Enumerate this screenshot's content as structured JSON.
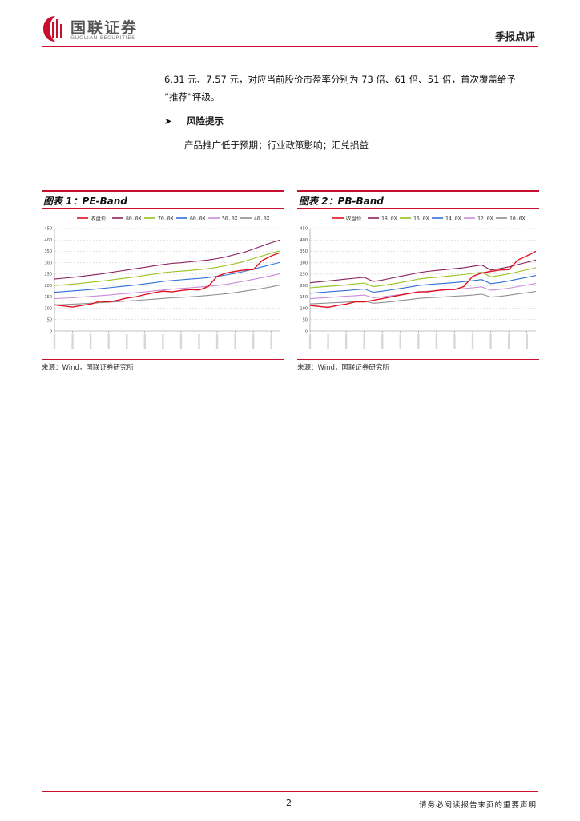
{
  "header": {
    "logo_cn": "国联证券",
    "logo_en": "GUOLIAN SECURITIES",
    "report_type": "季报点评"
  },
  "body": {
    "para1_line1": "6.31 元、7.57 元，对应当前股价市盈率分别为 73 倍、61 倍、51 倍，首次覆盖给予",
    "para1_line2": "“推荐”评级。",
    "risk_title": "风险提示",
    "risk_text": "产品推广低于预期；行业政策影响；汇兑损益"
  },
  "charts": {
    "pe": {
      "title": "图表 1：PE-Band",
      "source": "来源：Wind，国联证券研究所"
    },
    "pb": {
      "title": "图表 2：PB-Band",
      "source": "来源：Wind，国联证券研究所"
    }
  },
  "chart_data": [
    {
      "type": "line",
      "title": "图表 1：PE-Band",
      "ylim": [
        0,
        450
      ],
      "yticks": [
        "0",
        "50",
        "100",
        "150",
        "200",
        "250",
        "300",
        "350",
        "400",
        "450"
      ],
      "grid": "horizontal dashed",
      "legend_position": "top",
      "x_count": 26,
      "series": [
        {
          "name": "收盘价",
          "color": "#e0101e",
          "values": [
            115,
            110,
            105,
            112,
            118,
            130,
            128,
            135,
            145,
            150,
            160,
            168,
            175,
            172,
            178,
            182,
            180,
            195,
            240,
            255,
            262,
            268,
            270,
            310,
            330,
            345
          ]
        },
        {
          "name": "80.0X",
          "color": "#8a1f5f",
          "values": [
            228,
            232,
            236,
            240,
            245,
            250,
            256,
            262,
            268,
            274,
            280,
            286,
            292,
            297,
            300,
            304,
            308,
            312,
            318,
            326,
            336,
            346,
            360,
            374,
            388,
            400
          ]
        },
        {
          "name": "70.0X",
          "color": "#99c21c",
          "values": [
            200,
            203,
            206,
            210,
            214,
            218,
            223,
            228,
            233,
            238,
            244,
            250,
            256,
            260,
            263,
            266,
            270,
            274,
            280,
            288,
            296,
            306,
            318,
            330,
            342,
            352
          ]
        },
        {
          "name": "60.0X",
          "color": "#2f6fd8",
          "values": [
            170,
            173,
            176,
            179,
            182,
            186,
            190,
            194,
            198,
            202,
            207,
            212,
            218,
            222,
            225,
            228,
            231,
            235,
            240,
            246,
            254,
            262,
            272,
            282,
            292,
            302
          ]
        },
        {
          "name": "50.0X",
          "color": "#c98ad9",
          "values": [
            142,
            144,
            146,
            149,
            152,
            155,
            158,
            162,
            165,
            168,
            172,
            176,
            180,
            184,
            187,
            190,
            193,
            196,
            200,
            205,
            212,
            219,
            227,
            235,
            243,
            252
          ]
        },
        {
          "name": "40.0X",
          "color": "#8e8e8e",
          "values": [
            115,
            116,
            118,
            120,
            122,
            124,
            127,
            129,
            132,
            134,
            137,
            140,
            143,
            146,
            148,
            150,
            153,
            156,
            160,
            164,
            169,
            175,
            181,
            187,
            194,
            202
          ]
        }
      ]
    },
    {
      "type": "line",
      "title": "图表 2：PB-Band",
      "ylim": [
        0,
        450
      ],
      "yticks": [
        "0",
        "50",
        "100",
        "150",
        "200",
        "250",
        "300",
        "350",
        "400",
        "450"
      ],
      "grid": "horizontal dashed",
      "legend_position": "top",
      "x_count": 26,
      "series": [
        {
          "name": "收盘价",
          "color": "#e0101e",
          "values": [
            112,
            108,
            104,
            112,
            118,
            128,
            128,
            135,
            142,
            150,
            158,
            165,
            172,
            172,
            178,
            182,
            182,
            195,
            240,
            255,
            262,
            268,
            270,
            312,
            330,
            350
          ]
        },
        {
          "name": "18.0X",
          "color": "#8a1f5f",
          "values": [
            212,
            216,
            220,
            224,
            228,
            232,
            236,
            218,
            224,
            232,
            240,
            248,
            256,
            262,
            266,
            270,
            274,
            278,
            284,
            290,
            268,
            274,
            282,
            292,
            302,
            312
          ]
        },
        {
          "name": "16.0X",
          "color": "#99c21c",
          "values": [
            190,
            193,
            196,
            199,
            203,
            207,
            211,
            195,
            200,
            206,
            213,
            220,
            228,
            233,
            236,
            240,
            244,
            248,
            253,
            258,
            238,
            244,
            251,
            260,
            269,
            278
          ]
        },
        {
          "name": "14.0X",
          "color": "#2f6fd8",
          "values": [
            166,
            169,
            172,
            175,
            178,
            181,
            185,
            170,
            175,
            181,
            187,
            193,
            200,
            204,
            207,
            210,
            213,
            217,
            221,
            226,
            208,
            213,
            220,
            228,
            236,
            244
          ]
        },
        {
          "name": "12.0X",
          "color": "#c98ad9",
          "values": [
            142,
            145,
            147,
            150,
            153,
            155,
            158,
            146,
            150,
            155,
            160,
            166,
            171,
            175,
            177,
            180,
            183,
            186,
            190,
            194,
            179,
            183,
            188,
            195,
            202,
            209
          ]
        },
        {
          "name": "10.0X",
          "color": "#8e8e8e",
          "values": [
            119,
            121,
            123,
            125,
            127,
            129,
            132,
            122,
            125,
            129,
            134,
            138,
            143,
            146,
            148,
            150,
            153,
            155,
            158,
            162,
            149,
            152,
            157,
            163,
            168,
            174
          ]
        }
      ]
    }
  ],
  "footer": {
    "page_number": "2",
    "disclaimer": "请务必阅读报告末页的重要声明"
  }
}
